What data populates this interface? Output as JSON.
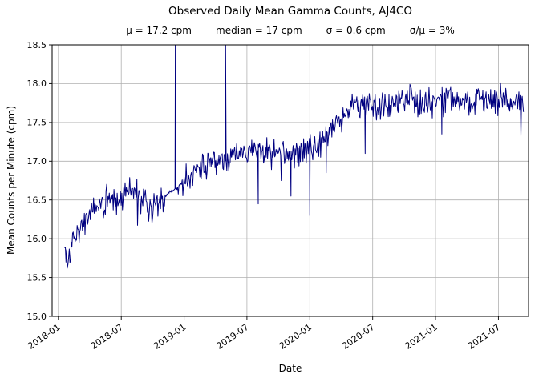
{
  "chart_data": {
    "type": "line",
    "title": "Observed Daily Mean Gamma Counts, AJ4CO",
    "stats": {
      "mu": "μ = 17.2 cpm",
      "median": "median = 17 cpm",
      "sigma": "σ = 0.6 cpm",
      "sigma_over_mu": "σ/μ = 3%"
    },
    "xlabel": "Date",
    "ylabel": "Mean Counts per Minute (cpm)",
    "units": "cpm",
    "x_unit": "decimal_year",
    "x_domain": [
      2017.95,
      2021.74
    ],
    "ylim": [
      15.0,
      18.5
    ],
    "grid": true,
    "x_ticks": [
      {
        "x": 2018.0,
        "label": "2018-01"
      },
      {
        "x": 2018.5,
        "label": "2018-07"
      },
      {
        "x": 2019.0,
        "label": "2019-01"
      },
      {
        "x": 2019.5,
        "label": "2019-07"
      },
      {
        "x": 2020.0,
        "label": "2020-01"
      },
      {
        "x": 2020.5,
        "label": "2020-07"
      },
      {
        "x": 2021.0,
        "label": "2021-01"
      },
      {
        "x": 2021.5,
        "label": "2021-07"
      }
    ],
    "y_ticks": [
      15,
      15.5,
      16,
      16.5,
      17,
      17.5,
      18,
      18.5
    ],
    "colors": {
      "line": "#000080",
      "grid": "#b0b0b0",
      "axis": "#000000"
    },
    "trend_anchors": [
      [
        2018.05,
        15.85
      ],
      [
        2018.08,
        15.7
      ],
      [
        2018.1,
        15.95
      ],
      [
        2018.15,
        16.05
      ],
      [
        2018.2,
        16.2
      ],
      [
        2018.3,
        16.4
      ],
      [
        2018.4,
        16.5
      ],
      [
        2018.5,
        16.55
      ],
      [
        2018.58,
        16.65
      ],
      [
        2018.65,
        16.55
      ],
      [
        2018.72,
        16.4
      ],
      [
        2018.78,
        16.45
      ],
      [
        2018.84,
        16.55
      ],
      [
        2018.98,
        16.7
      ],
      [
        2019.05,
        16.8
      ],
      [
        2019.15,
        16.95
      ],
      [
        2019.25,
        17.0
      ],
      [
        2019.4,
        17.1
      ],
      [
        2019.55,
        17.15
      ],
      [
        2019.7,
        17.15
      ],
      [
        2019.85,
        17.1
      ],
      [
        2020.0,
        17.15
      ],
      [
        2020.1,
        17.3
      ],
      [
        2020.2,
        17.4
      ],
      [
        2020.3,
        17.65
      ],
      [
        2020.38,
        17.8
      ],
      [
        2020.5,
        17.75
      ],
      [
        2020.65,
        17.7
      ],
      [
        2020.8,
        17.8
      ],
      [
        2020.95,
        17.75
      ],
      [
        2021.1,
        17.8
      ],
      [
        2021.25,
        17.75
      ],
      [
        2021.4,
        17.8
      ],
      [
        2021.55,
        17.8
      ],
      [
        2021.7,
        17.8
      ]
    ],
    "spikes": [
      [
        2018.93,
        19.2
      ],
      [
        2019.33,
        18.6
      ],
      [
        2019.59,
        16.45
      ],
      [
        2019.85,
        16.55
      ],
      [
        2020.0,
        16.3
      ],
      [
        2020.13,
        16.85
      ],
      [
        2020.44,
        17.1
      ],
      [
        2021.05,
        17.35
      ]
    ],
    "smooth_windows": [
      [
        2018.84,
        2018.98
      ]
    ],
    "noise_sd": 0.09,
    "dip_prob": 0.012,
    "dip_extra": 0.22,
    "n_points": 700,
    "seed": 3
  }
}
